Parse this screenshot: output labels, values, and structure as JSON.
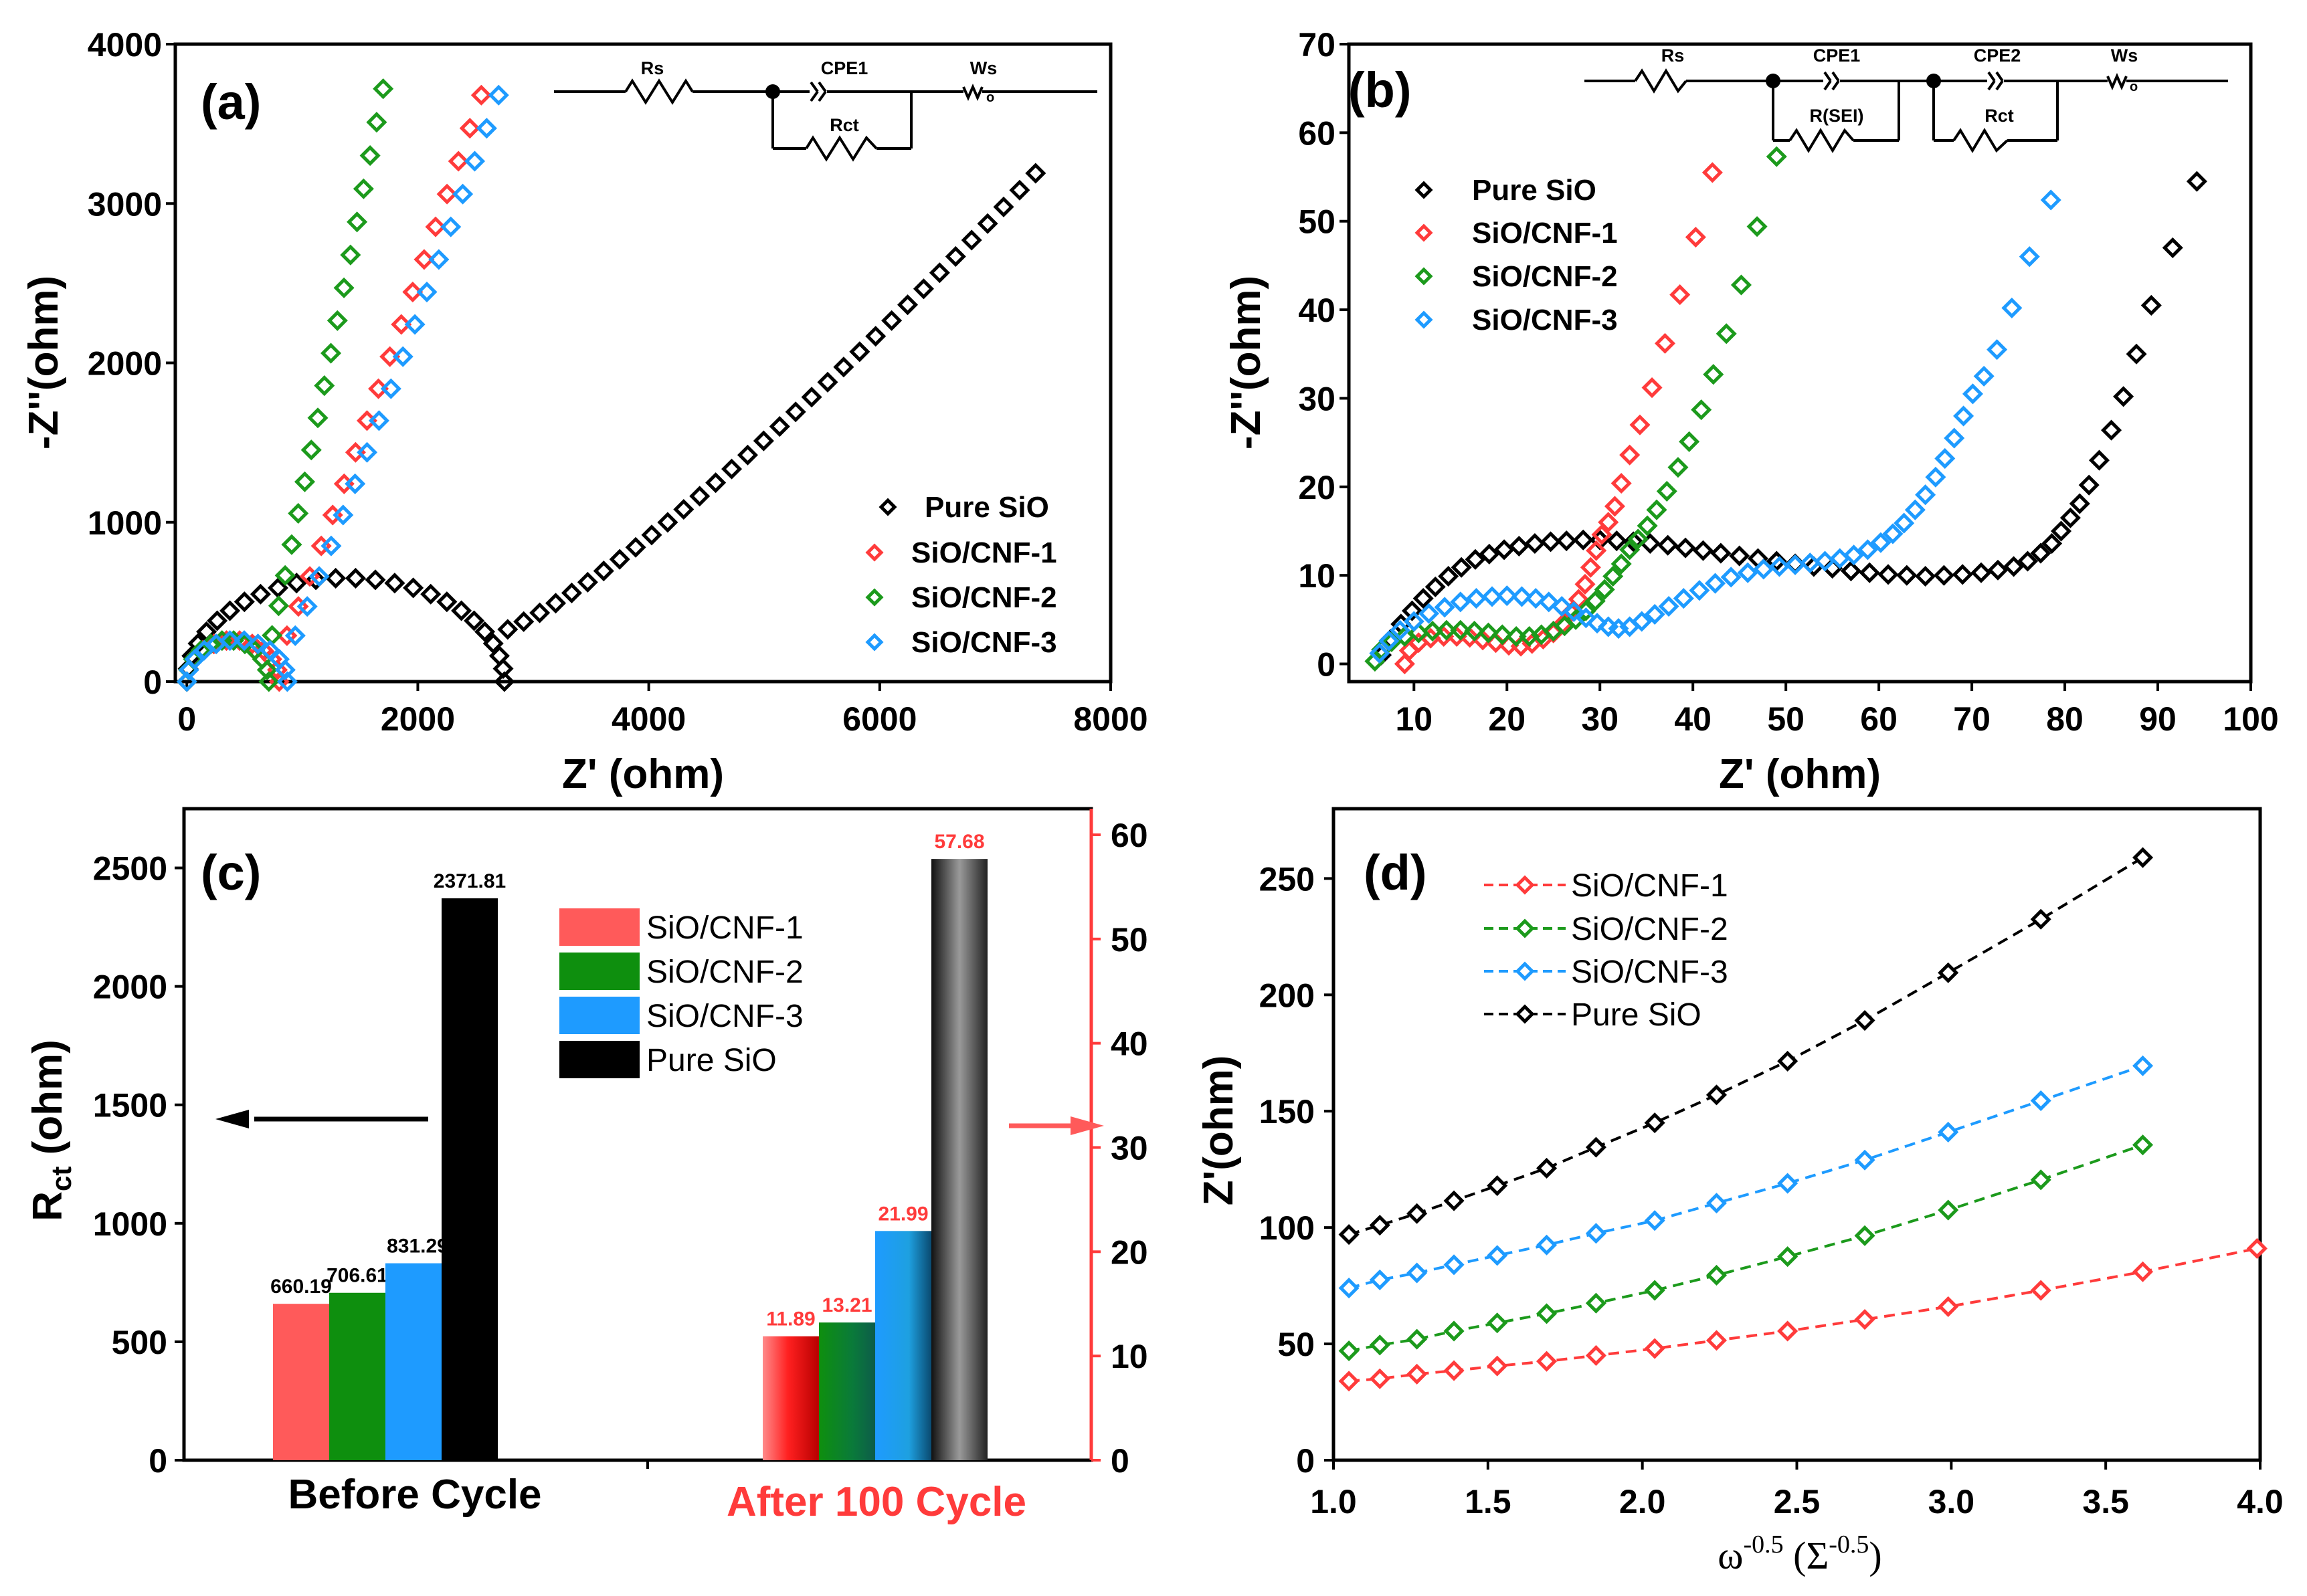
{
  "chart_data": [
    {
      "id": "a",
      "type": "scatter",
      "panel_label": "(a)",
      "xlabel": "Z' (ohm)",
      "ylabel": "-Z''(ohm)",
      "xlim": [
        -100,
        8000
      ],
      "ylim": [
        0,
        4000
      ],
      "xticks": [
        0,
        2000,
        4000,
        6000,
        8000
      ],
      "yticks": [
        0,
        1000,
        2000,
        3000,
        4000
      ],
      "circuit": {
        "labels": [
          "Rs",
          "CPE1",
          "Ws",
          "Rct"
        ]
      },
      "legend": [
        "Pure SiO",
        "SiO/CNF-1",
        "SiO/CNF-2",
        "SiO/CNF-3"
      ],
      "series": [
        {
          "name": "Pure SiO",
          "color": "#000000",
          "kind": "nyquist",
          "r0": 0,
          "rct": 2750,
          "semi_h": 650,
          "tail_end": [
            7350,
            3190
          ],
          "n_arc": 26,
          "n_tail": 34
        },
        {
          "name": "SiO/CNF-1",
          "color": "#ff3b3b",
          "kind": "nyquist",
          "r0": 0,
          "rct": 800,
          "semi_h": 260,
          "tail_end": [
            2550,
            3680
          ],
          "n_arc": 12,
          "n_tail": 18
        },
        {
          "name": "SiO/CNF-2",
          "color": "#1c9a1c",
          "kind": "nyquist",
          "r0": 0,
          "rct": 710,
          "semi_h": 260,
          "tail_end": [
            1700,
            3720
          ],
          "n_arc": 12,
          "n_tail": 18
        },
        {
          "name": "SiO/CNF-3",
          "color": "#1e9bff",
          "kind": "nyquist",
          "r0": 0,
          "rct": 870,
          "semi_h": 260,
          "tail_end": [
            2700,
            3680
          ],
          "n_arc": 12,
          "n_tail": 18
        }
      ]
    },
    {
      "id": "b",
      "type": "scatter",
      "panel_label": "(b)",
      "xlabel": "Z' (ohm)",
      "ylabel": "-Z''(ohm)",
      "xlim": [
        3,
        100
      ],
      "ylim": [
        -2,
        70
      ],
      "xticks": [
        10,
        20,
        30,
        40,
        50,
        60,
        70,
        80,
        90,
        100
      ],
      "yticks": [
        0,
        10,
        20,
        30,
        40,
        50,
        60,
        70
      ],
      "circuit": {
        "labels": [
          "Rs",
          "CPE1",
          "CPE2",
          "Ws",
          "R(SEI)",
          "Rct"
        ]
      },
      "legend": [
        "Pure SiO",
        "SiO/CNF-1",
        "SiO/CNF-2",
        "SiO/CNF-3"
      ],
      "series": [
        {
          "name": "Pure SiO",
          "color": "#000000",
          "kind": "points",
          "points": [
            [
              6.5,
              1
            ],
            [
              7.5,
              2.8
            ],
            [
              8.6,
              4.5
            ],
            [
              9.8,
              6
            ],
            [
              11,
              7.4
            ],
            [
              12.3,
              8.7
            ],
            [
              13.7,
              9.9
            ],
            [
              15.1,
              10.9
            ],
            [
              16.6,
              11.8
            ],
            [
              18.1,
              12.4
            ],
            [
              19.7,
              12.9
            ],
            [
              21.3,
              13.3
            ],
            [
              23,
              13.6
            ],
            [
              24.7,
              13.8
            ],
            [
              26.4,
              13.9
            ],
            [
              28.2,
              14
            ],
            [
              30,
              14
            ],
            [
              31.8,
              13.9
            ],
            [
              33.6,
              13.8
            ],
            [
              35.4,
              13.6
            ],
            [
              37.3,
              13.4
            ],
            [
              39.2,
              13.1
            ],
            [
              41.1,
              12.8
            ],
            [
              43,
              12.5
            ],
            [
              45,
              12.2
            ],
            [
              47,
              11.9
            ],
            [
              49,
              11.6
            ],
            [
              51,
              11.3
            ],
            [
              53,
              11
            ],
            [
              55,
              10.8
            ],
            [
              57,
              10.5
            ],
            [
              59,
              10.3
            ],
            [
              61,
              10.1
            ],
            [
              63,
              10
            ],
            [
              65,
              9.9
            ],
            [
              67,
              10
            ],
            [
              69,
              10.1
            ],
            [
              71,
              10.3
            ],
            [
              72.8,
              10.6
            ],
            [
              74.5,
              11
            ],
            [
              76,
              11.6
            ],
            [
              77.4,
              12.5
            ],
            [
              78.6,
              13.6
            ],
            [
              79.6,
              15
            ],
            [
              80.6,
              16.5
            ],
            [
              81.6,
              18.1
            ],
            [
              82.6,
              20.2
            ],
            [
              83.7,
              23
            ],
            [
              85,
              26.4
            ],
            [
              86.3,
              30.2
            ],
            [
              87.7,
              35
            ],
            [
              89.3,
              40.5
            ],
            [
              91.6,
              47
            ],
            [
              94.2,
              54.5
            ]
          ]
        },
        {
          "name": "SiO/CNF-1",
          "color": "#ff3b3b",
          "kind": "points",
          "points": [
            [
              9,
              0
            ],
            [
              9.5,
              1.5
            ],
            [
              10.5,
              2.4
            ],
            [
              11.8,
              2.9
            ],
            [
              13.2,
              3.1
            ],
            [
              14.6,
              3.1
            ],
            [
              16,
              3
            ],
            [
              17.4,
              2.7
            ],
            [
              18.8,
              2.4
            ],
            [
              20.2,
              2.1
            ],
            [
              21.5,
              2
            ],
            [
              22.7,
              2.3
            ],
            [
              23.9,
              2.8
            ],
            [
              25,
              3.5
            ],
            [
              26,
              4.5
            ],
            [
              26.9,
              5.8
            ],
            [
              27.7,
              7.3
            ],
            [
              28.4,
              9
            ],
            [
              29,
              10.9
            ],
            [
              29.6,
              12.8
            ],
            [
              30.2,
              14.6
            ],
            [
              30.9,
              16
            ],
            [
              31.6,
              17.8
            ],
            [
              32.3,
              20.4
            ],
            [
              33.2,
              23.6
            ],
            [
              34.3,
              27
            ],
            [
              35.6,
              31.2
            ],
            [
              37,
              36.2
            ],
            [
              38.6,
              41.7
            ],
            [
              40.3,
              48.2
            ],
            [
              42.1,
              55.5
            ]
          ]
        },
        {
          "name": "SiO/CNF-2",
          "color": "#1c9a1c",
          "kind": "points",
          "points": [
            [
              5.8,
              0.3
            ],
            [
              6.5,
              1.6
            ],
            [
              7.6,
              2.5
            ],
            [
              9,
              3.1
            ],
            [
              10.5,
              3.5
            ],
            [
              12,
              3.7
            ],
            [
              13.5,
              3.8
            ],
            [
              15,
              3.8
            ],
            [
              16.5,
              3.7
            ],
            [
              18,
              3.5
            ],
            [
              19.5,
              3.3
            ],
            [
              21,
              3.1
            ],
            [
              22.4,
              3.1
            ],
            [
              23.7,
              3.3
            ],
            [
              25,
              3.7
            ],
            [
              26.2,
              4.3
            ],
            [
              27.4,
              5
            ],
            [
              28.5,
              6
            ],
            [
              29.5,
              7.1
            ],
            [
              30.5,
              8.4
            ],
            [
              31.4,
              9.9
            ],
            [
              32.3,
              11.3
            ],
            [
              33.2,
              12.9
            ],
            [
              34.1,
              14.1
            ],
            [
              35.1,
              15.6
            ],
            [
              36.1,
              17.4
            ],
            [
              37.2,
              19.5
            ],
            [
              38.4,
              22.2
            ],
            [
              39.6,
              25.1
            ],
            [
              40.9,
              28.7
            ],
            [
              42.2,
              32.7
            ],
            [
              43.6,
              37.3
            ],
            [
              45.2,
              42.8
            ],
            [
              46.9,
              49.4
            ],
            [
              49,
              57.3
            ]
          ]
        },
        {
          "name": "SiO/CNF-3",
          "color": "#1e9bff",
          "kind": "points",
          "points": [
            [
              6.3,
              1.2
            ],
            [
              7.3,
              2.6
            ],
            [
              8.5,
              3.8
            ],
            [
              10,
              4.8
            ],
            [
              11.6,
              5.7
            ],
            [
              13.3,
              6.4
            ],
            [
              15,
              7
            ],
            [
              16.7,
              7.4
            ],
            [
              18.4,
              7.6
            ],
            [
              20,
              7.7
            ],
            [
              21.6,
              7.6
            ],
            [
              23.1,
              7.4
            ],
            [
              24.5,
              7
            ],
            [
              25.9,
              6.5
            ],
            [
              27.2,
              5.9
            ],
            [
              28.5,
              5.2
            ],
            [
              29.7,
              4.6
            ],
            [
              30.9,
              4.2
            ],
            [
              32,
              4
            ],
            [
              33.2,
              4.2
            ],
            [
              34.5,
              4.8
            ],
            [
              35.9,
              5.6
            ],
            [
              37.4,
              6.5
            ],
            [
              39,
              7.4
            ],
            [
              40.7,
              8.3
            ],
            [
              42.4,
              9.1
            ],
            [
              44.1,
              9.8
            ],
            [
              45.9,
              10.3
            ],
            [
              47.6,
              10.7
            ],
            [
              49.3,
              11
            ],
            [
              51,
              11.2
            ],
            [
              52.6,
              11.4
            ],
            [
              54.2,
              11.6
            ],
            [
              55.8,
              11.9
            ],
            [
              57.3,
              12.3
            ],
            [
              58.8,
              12.9
            ],
            [
              60.2,
              13.7
            ],
            [
              61.5,
              14.7
            ],
            [
              62.7,
              15.9
            ],
            [
              63.9,
              17.4
            ],
            [
              65,
              19.1
            ],
            [
              66.1,
              21.1
            ],
            [
              67.1,
              23.2
            ],
            [
              68.1,
              25.5
            ],
            [
              69.1,
              28
            ],
            [
              70.1,
              30.5
            ],
            [
              71.3,
              32.5
            ],
            [
              72.7,
              35.5
            ],
            [
              74.3,
              40.2
            ],
            [
              76.2,
              46
            ],
            [
              78.5,
              52.4
            ]
          ]
        }
      ]
    },
    {
      "id": "c",
      "type": "bar",
      "panel_label": "(c)",
      "ylabel": "Rct (ohm)",
      "ylabel_main": "R",
      "ylabel_sub": "ct",
      "ylabel_unit": " (ohm)",
      "ylim": [
        0,
        2750
      ],
      "yticks": [
        0,
        500,
        1000,
        1500,
        2000,
        2500
      ],
      "y2lim": [
        0,
        62.5
      ],
      "y2ticks": [
        0,
        10,
        20,
        30,
        40,
        50,
        60
      ],
      "categories": [
        "Before Cycle",
        "After 100 Cycle"
      ],
      "legend": [
        "SiO/CNF-1",
        "SiO/CNF-2",
        "SiO/CNF-3",
        "Pure SiO"
      ],
      "series": [
        {
          "name": "SiO/CNF-1",
          "color": "#ff5a5a",
          "values": [
            660.19,
            11.89
          ],
          "labels": [
            "660.19",
            "11.89"
          ]
        },
        {
          "name": "SiO/CNF-2",
          "color": "#0e8f0e",
          "values": [
            706.61,
            13.21
          ],
          "labels": [
            "706.61",
            "13.21"
          ]
        },
        {
          "name": "SiO/CNF-3",
          "color": "#1e9bff",
          "values": [
            831.29,
            21.99
          ],
          "labels": [
            "831.29",
            "21.99"
          ]
        },
        {
          "name": "Pure SiO",
          "color": "#000000",
          "values": [
            2371.81,
            57.68
          ],
          "labels": [
            "2371.81",
            "57.68"
          ]
        }
      ],
      "after_color": "#ff3b3b"
    },
    {
      "id": "d",
      "type": "line",
      "panel_label": "(d)",
      "xlabel_main": "ω",
      "xlabel_sup": "-0.5",
      "xlabel_mid": " (Σ",
      "xlabel_sup2": "-0.5",
      "xlabel_end": ")",
      "ylabel": "Z'(ohm)",
      "xlim": [
        1.0,
        4.0
      ],
      "ylim": [
        0,
        280
      ],
      "xticks": [
        "1.0",
        "1.5",
        "2.0",
        "2.5",
        "3.0",
        "3.5",
        "4.0"
      ],
      "yticks": [
        0,
        50,
        100,
        150,
        200,
        250
      ],
      "legend": [
        "SiO/CNF-1",
        "SiO/CNF-2",
        "SiO/CNF-3",
        "Pure SiO"
      ],
      "x": [
        1.05,
        1.15,
        1.27,
        1.39,
        1.53,
        1.69,
        1.85,
        2.04,
        2.24,
        2.47,
        2.72,
        2.99,
        3.29,
        3.62
      ],
      "series": [
        {
          "name": "SiO/CNF-1",
          "color": "#ff3b3b",
          "x": [
            1.05,
            1.15,
            1.27,
            1.39,
            1.53,
            1.69,
            1.85,
            2.04,
            2.24,
            2.47,
            2.72,
            2.99,
            3.29,
            3.62,
            3.99
          ],
          "values": [
            34,
            35,
            37,
            38.5,
            40.5,
            42.5,
            45,
            48,
            51.5,
            55.5,
            60.5,
            66,
            73,
            81,
            91
          ]
        },
        {
          "name": "SiO/CNF-2",
          "color": "#1c9a1c",
          "values": [
            47,
            49.5,
            52,
            55.5,
            59,
            63,
            67.5,
            73,
            79.5,
            87.5,
            96.5,
            107.5,
            120.5,
            135.5
          ]
        },
        {
          "name": "SiO/CNF-3",
          "color": "#1e9bff",
          "values": [
            74,
            77.5,
            80.5,
            84,
            88,
            92.5,
            97.5,
            103,
            110.5,
            119,
            129,
            141,
            154.5,
            169.5
          ]
        },
        {
          "name": "Pure SiO",
          "color": "#000000",
          "values": [
            97,
            101,
            106,
            111.5,
            118,
            125.5,
            134.5,
            145,
            157,
            171.5,
            189,
            209.5,
            232.5,
            259
          ]
        }
      ]
    }
  ]
}
